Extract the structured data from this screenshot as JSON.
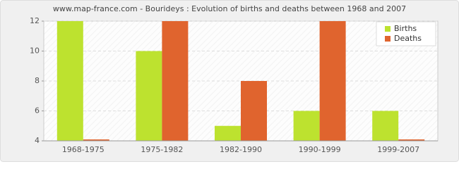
{
  "chart_data": {
    "type": "bar",
    "title": "www.map-france.com - Bourideys : Evolution of births and deaths between 1968 and 2007",
    "categories": [
      "1968-1975",
      "1975-1982",
      "1982-1990",
      "1990-1999",
      "1999-2007"
    ],
    "series": [
      {
        "name": "Births",
        "color": "#bde22f",
        "values": [
          12,
          10,
          5,
          6,
          6
        ]
      },
      {
        "name": "Deaths",
        "color": "#e0642e",
        "values": [
          4,
          12,
          8,
          12,
          4
        ]
      }
    ],
    "ylim": [
      4,
      12
    ],
    "yticks": [
      4,
      6,
      8,
      10,
      12
    ],
    "grid": true,
    "legend": "top-right"
  }
}
